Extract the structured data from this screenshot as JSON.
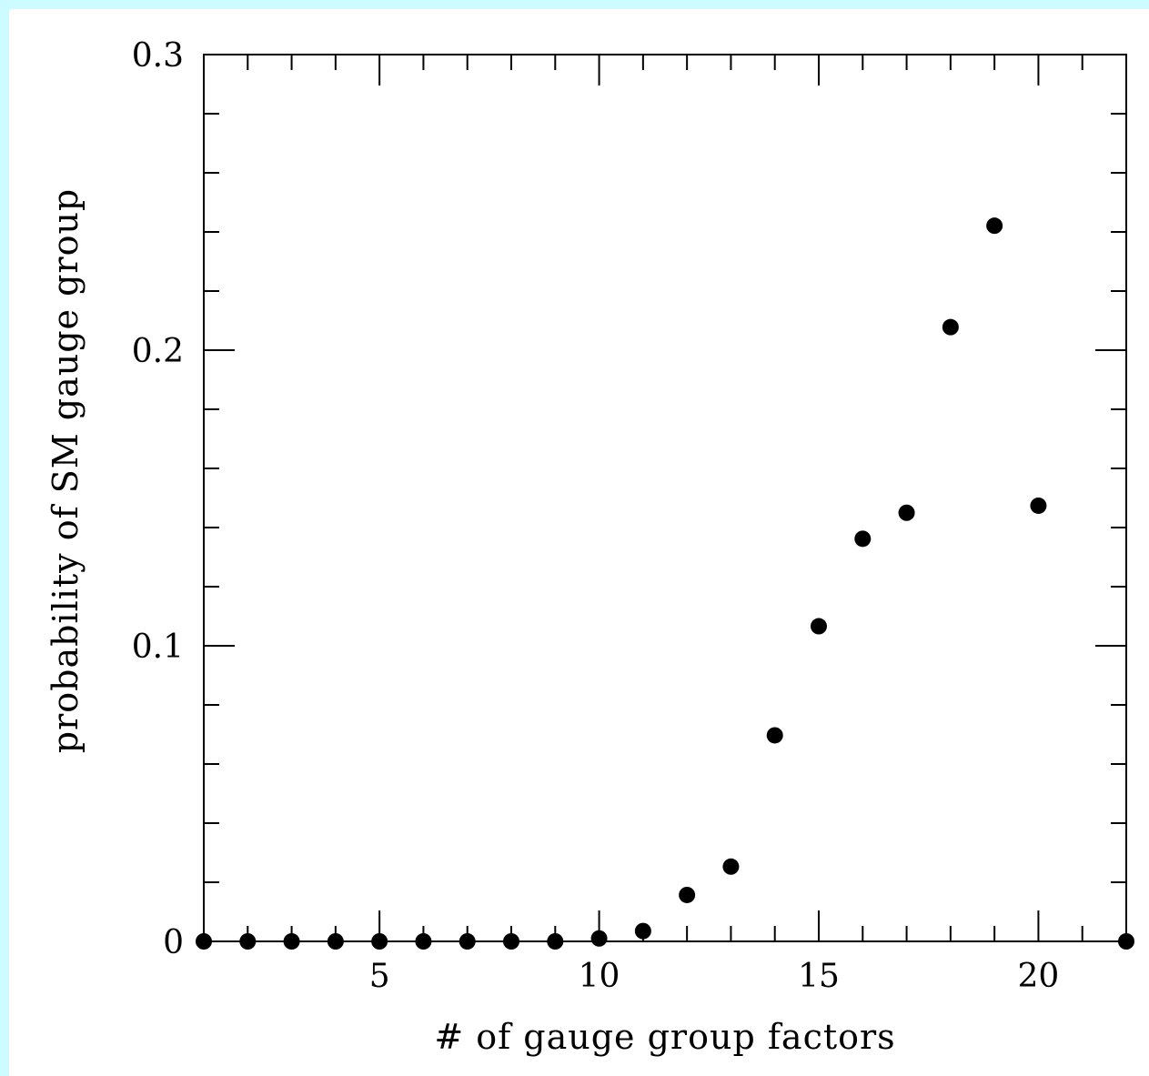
{
  "chart_data": {
    "type": "scatter",
    "title": "",
    "xlabel": "# of gauge group factors",
    "ylabel": "probability of SM gauge group",
    "xlim": [
      1,
      22
    ],
    "ylim": [
      0,
      0.3
    ],
    "x_ticks_major": [
      5,
      10,
      15,
      20
    ],
    "x_tick_labels": [
      "5",
      "10",
      "15",
      "20"
    ],
    "x_ticks_minor_step": 1,
    "y_ticks_major": [
      0,
      0.1,
      0.2,
      0.3
    ],
    "y_tick_labels": [
      "0",
      "0.1",
      "0.2",
      "0.3"
    ],
    "y_ticks_minor_step": 0.02,
    "grid": false,
    "marker_color": "#000000",
    "series": [
      {
        "x": [
          1,
          2,
          3,
          4,
          5,
          6,
          7,
          8,
          9,
          10,
          11,
          12,
          13,
          14,
          15,
          16,
          17,
          18,
          19,
          20,
          22
        ],
        "y": [
          0,
          0,
          0,
          0,
          0,
          0,
          0,
          0,
          0,
          0.001,
          0.0035,
          0.0157,
          0.0253,
          0.0697,
          0.1066,
          0.1362,
          0.145,
          0.2078,
          0.2421,
          0.1474,
          0
        ]
      }
    ]
  }
}
